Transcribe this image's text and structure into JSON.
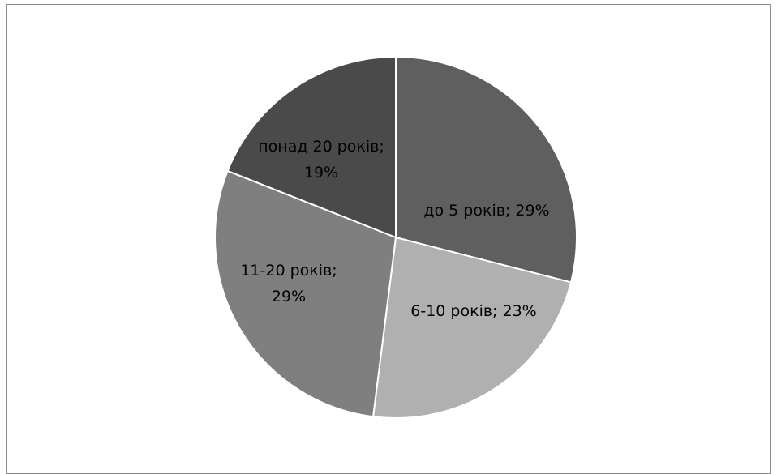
{
  "chart_data": {
    "type": "pie",
    "categories": [
      "до 5 років",
      "6-10 років",
      "11-20 років",
      "понад 20 років"
    ],
    "values": [
      29,
      23,
      29,
      19
    ],
    "colors": [
      "#5f5f5f",
      "#b0b0b0",
      "#7f7f7f",
      "#4a4a4a"
    ],
    "labels": [
      [
        "до 5 років; 29%"
      ],
      [
        "6-10 років; 23%"
      ],
      [
        "11-20 років;",
        "29%"
      ],
      [
        "понад 20 років;",
        "19%"
      ]
    ],
    "legend": "none"
  }
}
